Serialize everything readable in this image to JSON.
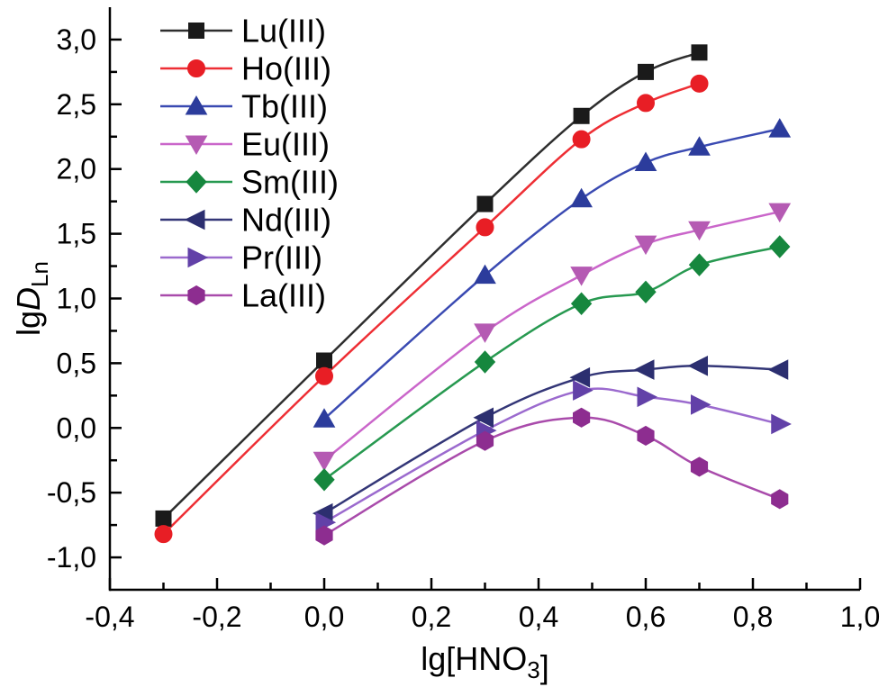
{
  "figure": {
    "background_color": "#ffffff",
    "text_color": "#000000"
  },
  "chart_data": {
    "type": "line",
    "title": "",
    "xlabel": "lg[HNO3]",
    "ylabel": "lgD_Ln",
    "xlabel_parts": [
      {
        "text": "lg[HNO"
      },
      {
        "text": "3",
        "sub": true
      },
      {
        "text": "]"
      }
    ],
    "ylabel_parts": [
      {
        "text": "lg"
      },
      {
        "text": "D",
        "italic": true
      },
      {
        "text": "Ln",
        "sub": true
      }
    ],
    "x_axis": {
      "min": -0.4,
      "max": 1.0,
      "major_ticks": [
        -0.4,
        -0.2,
        0.0,
        0.2,
        0.4,
        0.6,
        0.8,
        1.0
      ],
      "major_tick_labels": [
        "-0,4",
        "-0,2",
        "0,0",
        "0,2",
        "0,4",
        "0,6",
        "0,8",
        "1,0"
      ],
      "minor_ticks": [
        -0.3,
        -0.1,
        0.1,
        0.3,
        0.5,
        0.7,
        0.9
      ]
    },
    "y_axis": {
      "min": -1.25,
      "max": 3.25,
      "major_ticks": [
        3.0,
        2.5,
        2.0,
        1.5,
        1.0,
        0.5,
        0.0,
        -0.5,
        -1.0
      ],
      "major_tick_labels": [
        "3,0",
        "2,5",
        "2,0",
        "1,5",
        "1,0",
        "0,5",
        "0,0",
        "-0,5",
        "-1,0"
      ],
      "minor_ticks": [
        2.75,
        2.25,
        1.75,
        1.25,
        0.75,
        0.25,
        -0.25,
        -0.75
      ]
    },
    "grid": false,
    "legend_position": "top-left-inside",
    "series": [
      {
        "name": "Lu(III)",
        "marker": "square",
        "marker_color": "#1a1a1a",
        "line_color": "#2e2e2e",
        "x": [
          -0.3,
          0.0,
          0.3,
          0.48,
          0.6,
          0.7
        ],
        "y": [
          -0.7,
          0.52,
          1.73,
          2.41,
          2.75,
          2.9
        ]
      },
      {
        "name": "Ho(III)",
        "marker": "circle",
        "marker_color": "#e81e25",
        "line_color": "#ee2e34",
        "x": [
          -0.3,
          0.0,
          0.3,
          0.48,
          0.6,
          0.7
        ],
        "y": [
          -0.82,
          0.4,
          1.55,
          2.23,
          2.51,
          2.66
        ]
      },
      {
        "name": "Tb(III)",
        "marker": "triangle-up",
        "marker_color": "#2c3c9c",
        "line_color": "#3a4ab2",
        "x": [
          0.0,
          0.3,
          0.48,
          0.6,
          0.7,
          0.85
        ],
        "y": [
          0.07,
          1.18,
          1.77,
          2.05,
          2.17,
          2.31
        ]
      },
      {
        "name": "Eu(III)",
        "marker": "triangle-down",
        "marker_color": "#b55ab3",
        "line_color": "#ca66ca",
        "x": [
          0.0,
          0.3,
          0.48,
          0.6,
          0.7,
          0.85
        ],
        "y": [
          -0.25,
          0.74,
          1.18,
          1.42,
          1.53,
          1.67
        ]
      },
      {
        "name": "Sm(III)",
        "marker": "diamond",
        "marker_color": "#16873e",
        "line_color": "#279950",
        "x": [
          0.0,
          0.3,
          0.48,
          0.6,
          0.7,
          0.85
        ],
        "y": [
          -0.4,
          0.51,
          0.96,
          1.05,
          1.26,
          1.4
        ]
      },
      {
        "name": "Nd(III)",
        "marker": "triangle-left",
        "marker_color": "#2c2f70",
        "line_color": "#333677",
        "x": [
          0.0,
          0.3,
          0.48,
          0.6,
          0.7,
          0.85
        ],
        "y": [
          -0.66,
          0.08,
          0.39,
          0.45,
          0.48,
          0.45
        ]
      },
      {
        "name": "Pr(III)",
        "marker": "triangle-right",
        "marker_color": "#6241a8",
        "line_color": "#9b6ace",
        "x": [
          0.0,
          0.3,
          0.48,
          0.6,
          0.7,
          0.85
        ],
        "y": [
          -0.73,
          -0.02,
          0.29,
          0.24,
          0.18,
          0.03
        ]
      },
      {
        "name": "La(III)",
        "marker": "hexagon",
        "marker_color": "#8d2d90",
        "line_color": "#a94bab",
        "x": [
          0.0,
          0.3,
          0.48,
          0.6,
          0.7,
          0.85
        ],
        "y": [
          -0.83,
          -0.1,
          0.08,
          -0.06,
          -0.3,
          -0.55
        ]
      }
    ]
  },
  "legend": {
    "items": [
      "Lu(III)",
      "Ho(III)",
      "Tb(III)",
      "Eu(III)",
      "Sm(III)",
      "Nd(III)",
      "Pr(III)",
      "La(III)"
    ]
  }
}
